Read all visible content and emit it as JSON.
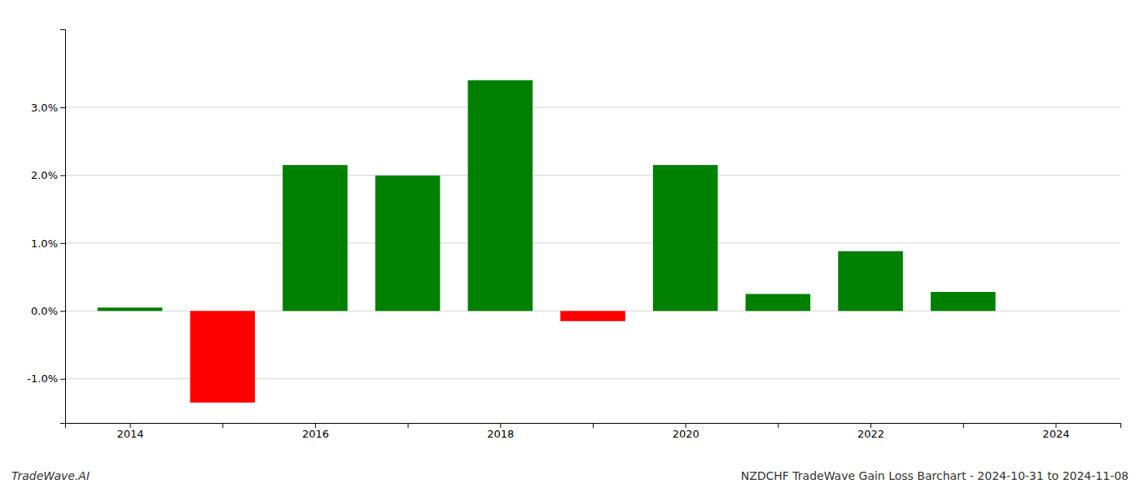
{
  "chart_data": {
    "type": "bar",
    "x": [
      2014,
      2015,
      2016,
      2017,
      2018,
      2019,
      2020,
      2021,
      2022,
      2023
    ],
    "values": [
      0.0005,
      -0.0135,
      0.0215,
      0.01995,
      0.034,
      -0.0015,
      0.0215,
      0.0025,
      0.0088,
      0.0028
    ],
    "colors": [
      "#008000",
      "#ff0000",
      "#008000",
      "#008000",
      "#008000",
      "#ff0000",
      "#008000",
      "#008000",
      "#008000",
      "#008000"
    ],
    "xlim": [
      2013.3,
      2024.7
    ],
    "xticks": [
      2014,
      {
        "value": 2015,
        "label": null
      },
      2016,
      {
        "value": 2017,
        "label": null
      },
      2018,
      {
        "value": 2019,
        "label": null
      },
      2020,
      {
        "value": 2021,
        "label": null
      },
      2022,
      {
        "value": 2023,
        "label": null
      },
      2024
    ],
    "ylim": [
      -0.0165,
      0.0415
    ],
    "yticks": [
      {
        "value": -0.01,
        "label": "-1.0%"
      },
      {
        "value": 0.0,
        "label": "0.0%"
      },
      {
        "value": 0.01,
        "label": "1.0%"
      },
      {
        "value": 0.02,
        "label": "2.0%"
      },
      {
        "value": 0.03,
        "label": "3.0%"
      }
    ],
    "grid": true,
    "annotations": [
      "TradeWave.AI",
      "NZDCHF TradeWave Gain Loss Barchart - 2024-10-31 to 2024-11-08"
    ]
  }
}
